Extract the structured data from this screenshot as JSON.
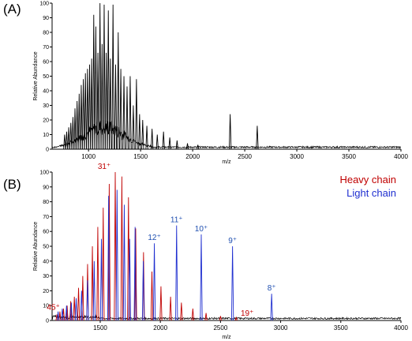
{
  "chart_data": [
    {
      "panel": "(A)",
      "type": "line",
      "xlabel": "m/z",
      "ylabel": "Relative Abundance",
      "xlim": [
        650,
        4000
      ],
      "ylim": [
        0,
        100
      ],
      "x_ticks": [
        1000,
        1500,
        2000,
        2500,
        3000,
        3500,
        4000
      ],
      "y_ticks": [
        0,
        10,
        20,
        30,
        40,
        50,
        60,
        70,
        80,
        90,
        100
      ],
      "series": [
        {
          "color": "#000000",
          "peaks": [
            {
              "x": 770,
              "y": 10
            },
            {
              "x": 790,
              "y": 12
            },
            {
              "x": 810,
              "y": 15
            },
            {
              "x": 830,
              "y": 18
            },
            {
              "x": 850,
              "y": 22
            },
            {
              "x": 870,
              "y": 28
            },
            {
              "x": 890,
              "y": 33
            },
            {
              "x": 910,
              "y": 38
            },
            {
              "x": 930,
              "y": 44
            },
            {
              "x": 950,
              "y": 48
            },
            {
              "x": 970,
              "y": 52
            },
            {
              "x": 990,
              "y": 55
            },
            {
              "x": 1010,
              "y": 58
            },
            {
              "x": 1030,
              "y": 62
            },
            {
              "x": 1050,
              "y": 92
            },
            {
              "x": 1070,
              "y": 84
            },
            {
              "x": 1090,
              "y": 66
            },
            {
              "x": 1110,
              "y": 100
            },
            {
              "x": 1130,
              "y": 72
            },
            {
              "x": 1150,
              "y": 99
            },
            {
              "x": 1170,
              "y": 66
            },
            {
              "x": 1190,
              "y": 95
            },
            {
              "x": 1210,
              "y": 62
            },
            {
              "x": 1235,
              "y": 99
            },
            {
              "x": 1260,
              "y": 58
            },
            {
              "x": 1285,
              "y": 80
            },
            {
              "x": 1310,
              "y": 55
            },
            {
              "x": 1340,
              "y": 50
            },
            {
              "x": 1370,
              "y": 43
            },
            {
              "x": 1400,
              "y": 50
            },
            {
              "x": 1430,
              "y": 30
            },
            {
              "x": 1460,
              "y": 48
            },
            {
              "x": 1490,
              "y": 24
            },
            {
              "x": 1520,
              "y": 20
            },
            {
              "x": 1560,
              "y": 16
            },
            {
              "x": 1610,
              "y": 14
            },
            {
              "x": 1660,
              "y": 10
            },
            {
              "x": 1720,
              "y": 12
            },
            {
              "x": 1780,
              "y": 8
            },
            {
              "x": 1850,
              "y": 6
            },
            {
              "x": 1950,
              "y": 4
            },
            {
              "x": 2050,
              "y": 3
            },
            {
              "x": 2360,
              "y": 24
            },
            {
              "x": 2620,
              "y": 16
            }
          ]
        }
      ]
    },
    {
      "panel": "(B)",
      "type": "line",
      "xlabel": "m/z",
      "ylabel": "Relative Abundance",
      "xlim": [
        1100,
        4000
      ],
      "ylim": [
        0,
        100
      ],
      "x_ticks": [
        1500,
        2000,
        2500,
        3000,
        3500,
        4000
      ],
      "y_ticks": [
        0,
        10,
        20,
        30,
        40,
        50,
        60,
        70,
        80,
        90,
        100
      ],
      "legend": [
        "Heavy chain",
        "Light chain"
      ],
      "legend_position": "top-right",
      "series": [
        {
          "name": "Heavy chain",
          "color": "#c00000",
          "peaks": [
            {
              "x": 1140,
              "y": 4
            },
            {
              "x": 1165,
              "y": 6
            },
            {
              "x": 1195,
              "y": 8
            },
            {
              "x": 1225,
              "y": 10
            },
            {
              "x": 1255,
              "y": 13
            },
            {
              "x": 1285,
              "y": 16
            },
            {
              "x": 1320,
              "y": 22
            },
            {
              "x": 1355,
              "y": 30
            },
            {
              "x": 1395,
              "y": 38
            },
            {
              "x": 1435,
              "y": 50
            },
            {
              "x": 1480,
              "y": 63
            },
            {
              "x": 1525,
              "y": 76
            },
            {
              "x": 1575,
              "y": 92
            },
            {
              "x": 1625,
              "y": 100
            },
            {
              "x": 1680,
              "y": 97
            },
            {
              "x": 1735,
              "y": 83
            },
            {
              "x": 1795,
              "y": 62
            },
            {
              "x": 1860,
              "y": 46
            },
            {
              "x": 1930,
              "y": 33
            },
            {
              "x": 2005,
              "y": 23
            },
            {
              "x": 2085,
              "y": 16
            },
            {
              "x": 2175,
              "y": 12
            },
            {
              "x": 2270,
              "y": 8
            },
            {
              "x": 2380,
              "y": 5
            },
            {
              "x": 2500,
              "y": 3
            },
            {
              "x": 2630,
              "y": 2
            }
          ]
        },
        {
          "name": "Light chain",
          "color": "#1f2fd0",
          "peaks": [
            {
              "x": 1150,
              "y": 6
            },
            {
              "x": 1185,
              "y": 8
            },
            {
              "x": 1220,
              "y": 10
            },
            {
              "x": 1260,
              "y": 12
            },
            {
              "x": 1300,
              "y": 15
            },
            {
              "x": 1345,
              "y": 20
            },
            {
              "x": 1395,
              "y": 27
            },
            {
              "x": 1450,
              "y": 40
            },
            {
              "x": 1510,
              "y": 55
            },
            {
              "x": 1570,
              "y": 84
            },
            {
              "x": 1640,
              "y": 88
            },
            {
              "x": 1700,
              "y": 78
            },
            {
              "x": 1745,
              "y": 55
            },
            {
              "x": 1790,
              "y": 63
            },
            {
              "x": 1858,
              "y": 40
            },
            {
              "x": 1950,
              "y": 52
            },
            {
              "x": 2135,
              "y": 64
            },
            {
              "x": 2340,
              "y": 58
            },
            {
              "x": 2600,
              "y": 50
            },
            {
              "x": 2925,
              "y": 18
            }
          ]
        }
      ],
      "annotations": [
        {
          "text": "31⁺",
          "x": 1625,
          "y": 100,
          "color": "#c00000"
        },
        {
          "text": "12⁺",
          "x": 1950,
          "y": 52,
          "color": "#1f4fb0"
        },
        {
          "text": "11⁺",
          "x": 2135,
          "y": 64,
          "color": "#1f4fb0"
        },
        {
          "text": "10⁺",
          "x": 2340,
          "y": 58,
          "color": "#1f4fb0"
        },
        {
          "text": "9⁺",
          "x": 2600,
          "y": 50,
          "color": "#1f4fb0"
        },
        {
          "text": "8⁺",
          "x": 2925,
          "y": 18,
          "color": "#1f4fb0"
        },
        {
          "text": "45⁺",
          "x": 1150,
          "y": 6,
          "color": "#c00000"
        },
        {
          "text": "19⁺",
          "x": 2630,
          "y": 2,
          "color": "#c00000"
        }
      ]
    }
  ]
}
